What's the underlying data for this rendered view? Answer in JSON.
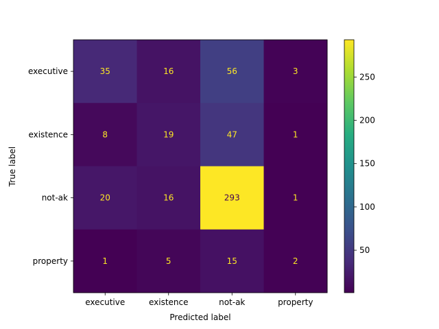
{
  "chart_data": {
    "type": "heatmap",
    "title": "",
    "xlabel": "Predicted label",
    "ylabel": "True label",
    "x_categories": [
      "executive",
      "existence",
      "not-ak",
      "property"
    ],
    "y_categories": [
      "executive",
      "existence",
      "not-ak",
      "property"
    ],
    "values": [
      [
        35,
        16,
        56,
        3
      ],
      [
        8,
        19,
        47,
        1
      ],
      [
        20,
        16,
        293,
        1
      ],
      [
        1,
        5,
        15,
        2
      ]
    ],
    "colormap": "viridis",
    "colorbar": {
      "range": [
        1,
        293
      ],
      "ticks": [
        50,
        100,
        150,
        200,
        250
      ]
    },
    "grid": false
  }
}
